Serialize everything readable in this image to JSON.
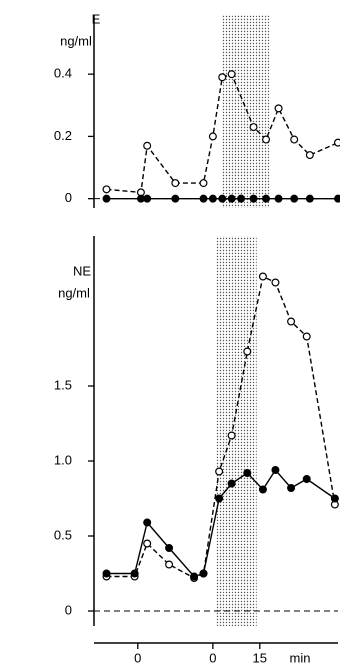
{
  "chart_data": [
    {
      "type": "line",
      "ylabel": "E",
      "yunit": "ng/ml",
      "xlim": [
        -14,
        64
      ],
      "ylim": [
        -0.03,
        0.59
      ],
      "yticks": [
        0,
        0.2,
        0.4
      ],
      "shade": [
        27,
        42
      ],
      "zero_line": true,
      "series": [
        {
          "marker": "open",
          "dashed": true,
          "color": "#000000",
          "x": [
            -10,
            1,
            3,
            12,
            21,
            24,
            27,
            30,
            37,
            41,
            45,
            50,
            55,
            64
          ],
          "values": [
            0.03,
            0.02,
            0.17,
            0.05,
            0.05,
            0.2,
            0.39,
            0.4,
            0.23,
            0.19,
            0.29,
            0.19,
            0.14,
            0.18
          ]
        },
        {
          "marker": "filled",
          "dashed": false,
          "color": "#000000",
          "x": [
            -10,
            1,
            3,
            12,
            21,
            24,
            27,
            30,
            33,
            37,
            41,
            45,
            50,
            55,
            64
          ],
          "values": [
            0,
            0,
            0,
            0,
            0,
            0,
            0,
            0,
            0,
            0,
            0,
            0,
            0,
            0,
            0
          ]
        }
      ]
    },
    {
      "type": "line",
      "ylabel": "NE",
      "yunit": "ng/ml",
      "xlim": [
        -14,
        64
      ],
      "ylim": [
        -0.1,
        2.5
      ],
      "yticks": [
        0,
        0.5,
        {
          "value": 1,
          "label": "1.0"
        },
        1.5
      ],
      "xticks": [
        0,
        {
          "value": 24,
          "label": "0"
        },
        {
          "value": 39,
          "label": "15"
        }
      ],
      "xlabel": "min",
      "shade": [
        25,
        38
      ],
      "zero_line": true,
      "series": [
        {
          "marker": "open",
          "dashed": true,
          "color": "#000000",
          "x": [
            -10,
            -1,
            3,
            10,
            18,
            21,
            26,
            30,
            35,
            40,
            44,
            49,
            54,
            63
          ],
          "values": [
            0.23,
            0.23,
            0.45,
            0.31,
            0.22,
            0.25,
            0.93,
            1.17,
            1.73,
            2.23,
            2.19,
            1.93,
            1.83,
            0.71
          ]
        },
        {
          "marker": "filled",
          "dashed": false,
          "color": "#000000",
          "x": [
            -10,
            -1,
            3,
            10,
            18,
            21,
            26,
            30,
            35,
            40,
            44,
            49,
            54,
            63
          ],
          "values": [
            0.25,
            0.25,
            0.59,
            0.42,
            0.23,
            0.25,
            0.75,
            0.85,
            0.92,
            0.81,
            0.94,
            0.82,
            0.88,
            0.75
          ]
        }
      ]
    }
  ]
}
